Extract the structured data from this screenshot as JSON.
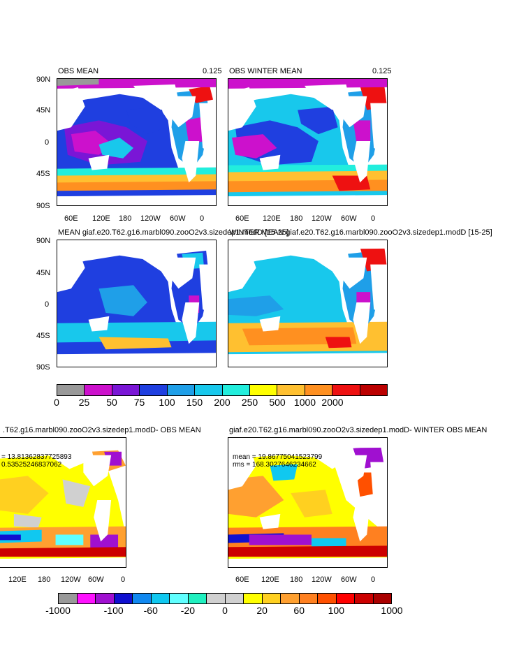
{
  "panels": {
    "p1": {
      "title": "OBS MEAN",
      "value": "0.125"
    },
    "p2": {
      "title": "OBS WINTER MEAN",
      "value": "0.125"
    },
    "p3": {
      "title": "MEAN giaf.e20.T62.g16.marbl090.zooO2v3.sizedep1.modD [15-25]"
    },
    "p4": {
      "title": "WINTER MEAN giaf.e20.T62.g16.marbl090.zooO2v3.sizedep1.modD [15-25]"
    },
    "p5": {
      "title": ".T62.g16.marbl090.zooO2v3.sizedep1.modD- OBS MEAN",
      "mean": "= 13.81362837725893",
      "rms": "0.53525246837062"
    },
    "p6": {
      "title": "giaf.e20.T62.g16.marbl090.zooO2v3.sizedep1.modD- WINTER OBS MEAN",
      "mean": "mean = 19.86775041523799",
      "rms": "rms = 168.3027646234662"
    }
  },
  "lat_ticks": [
    "90N",
    "45N",
    "0",
    "45S",
    "90S"
  ],
  "lon_ticks": [
    "60E",
    "120E",
    "180",
    "120W",
    "60W",
    "0"
  ],
  "lon_ticks_p5": [
    "120E",
    "180",
    "120W",
    "60W",
    "0"
  ],
  "colorbar1": {
    "labels": [
      "0",
      "25",
      "50",
      "75",
      "100",
      "150",
      "200",
      "250",
      "500",
      "1000",
      "2000"
    ],
    "colors": [
      "#999999",
      "#cc11cc",
      "#7a16d6",
      "#1f3fe0",
      "#1f9fe8",
      "#18c8ec",
      "#22eedd",
      "#ffff00",
      "#ffc030",
      "#ff9020",
      "#ee1111",
      "#bb0000"
    ]
  },
  "colorbar2": {
    "labels": [
      "-1000",
      "-100",
      "-60",
      "-20",
      "0",
      "20",
      "60",
      "100",
      "1000"
    ],
    "colors": [
      "#999999",
      "#ff11ff",
      "#a010d0",
      "#1010d0",
      "#1088f0",
      "#10c8f0",
      "#60ffff",
      "#20f0c0",
      "#d0d0d0",
      "#d0d0d0",
      "#ffff00",
      "#ffd020",
      "#ffa030",
      "#ff8020",
      "#ff5000",
      "#ff0000",
      "#cc0000",
      "#aa0000"
    ]
  }
}
